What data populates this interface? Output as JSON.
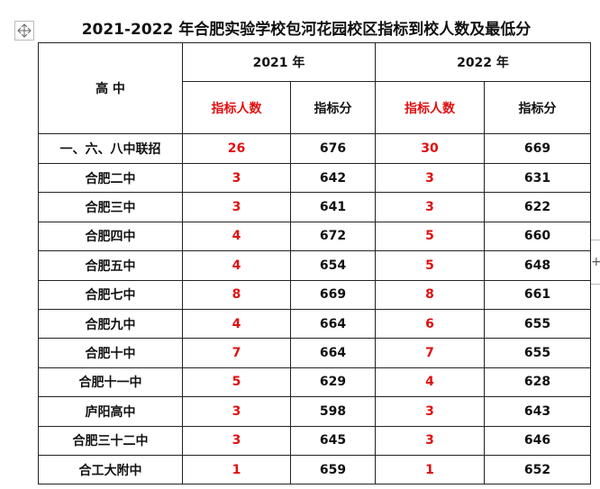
{
  "title": "2021-2022 年合肥实验学校包河花园校区指标到校人数及最低分",
  "table": {
    "row_header": "高 中",
    "years": [
      "2021 年",
      "2022 年"
    ],
    "sub_headers": [
      "指标人数",
      "指标分",
      "指标人数",
      "指标分"
    ],
    "rows": [
      [
        "一、六、八中联招",
        26,
        676,
        30,
        669
      ],
      [
        "合肥二中",
        3,
        642,
        3,
        631
      ],
      [
        "合肥三中",
        3,
        641,
        3,
        622
      ],
      [
        "合肥四中",
        4,
        672,
        5,
        660
      ],
      [
        "合肥五中",
        4,
        654,
        5,
        648
      ],
      [
        "合肥七中",
        8,
        669,
        8,
        661
      ],
      [
        "合肥九中",
        4,
        664,
        6,
        655
      ],
      [
        "合肥十中",
        7,
        664,
        7,
        655
      ],
      [
        "合肥十一中",
        5,
        629,
        4,
        628
      ],
      [
        "庐阳高中",
        3,
        598,
        3,
        643
      ],
      [
        "合肥三十二中",
        3,
        645,
        3,
        646
      ],
      [
        "合工大附中",
        1,
        659,
        1,
        652
      ]
    ]
  }
}
